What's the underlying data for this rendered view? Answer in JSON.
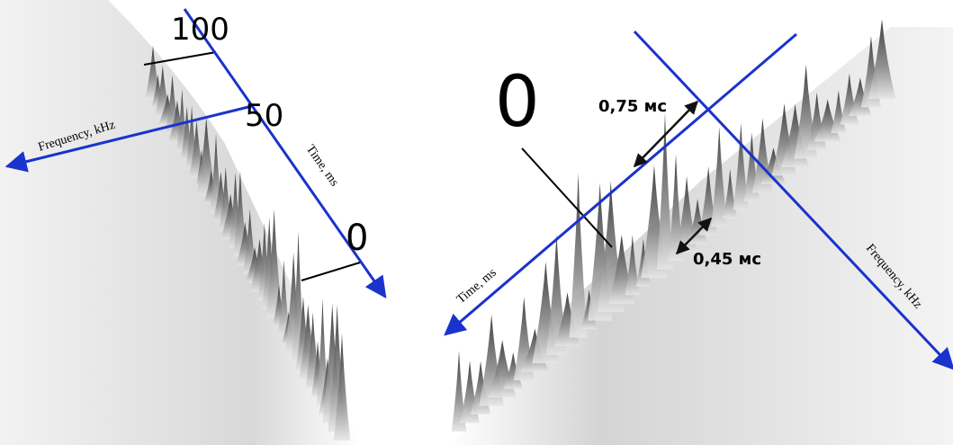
{
  "left_panel": {
    "ticks": [
      "100",
      "50",
      "0"
    ],
    "x_axis_label": "Frequency, kHz",
    "y_axis_label": "Time, ms"
  },
  "right_panel": {
    "tick": "0",
    "annotations": [
      "0,75 мс",
      "0,45 мс"
    ],
    "x_axis_label": "Time, ms",
    "y_axis_label": "Frequency, kHz"
  }
}
